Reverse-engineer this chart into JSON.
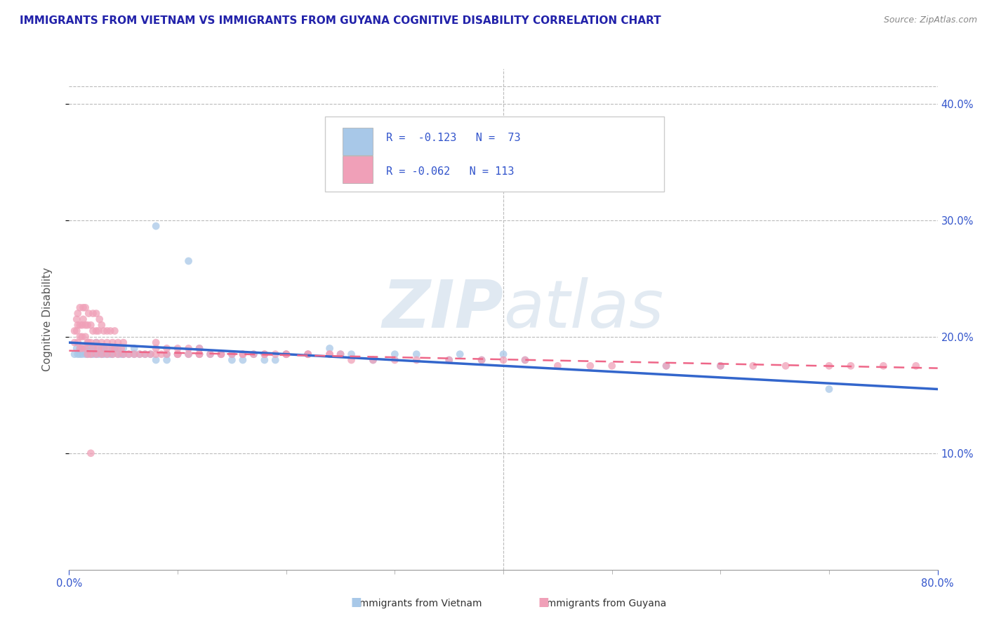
{
  "title": "IMMIGRANTS FROM VIETNAM VS IMMIGRANTS FROM GUYANA COGNITIVE DISABILITY CORRELATION CHART",
  "source": "Source: ZipAtlas.com",
  "ylabel": "Cognitive Disability",
  "color_vietnam": "#a8c8e8",
  "color_guyana": "#f0a0b8",
  "trendline_vietnam": "#3366cc",
  "trendline_guyana": "#ee6688",
  "watermark_zip": "ZIP",
  "watermark_atlas": "atlas",
  "title_color": "#2222aa",
  "source_color": "#888888",
  "xlim": [
    0.0,
    0.8
  ],
  "ylim": [
    0.0,
    0.43
  ],
  "viet_trend_x0": 0.0,
  "viet_trend_x1": 0.8,
  "viet_trend_y0": 0.195,
  "viet_trend_y1": 0.155,
  "guy_trend_x0": 0.0,
  "guy_trend_x1": 0.8,
  "guy_trend_y0": 0.188,
  "guy_trend_y1": 0.173,
  "vietnam_x": [
    0.005,
    0.007,
    0.008,
    0.01,
    0.01,
    0.012,
    0.012,
    0.015,
    0.015,
    0.017,
    0.017,
    0.02,
    0.02,
    0.022,
    0.022,
    0.025,
    0.025,
    0.025,
    0.027,
    0.03,
    0.03,
    0.032,
    0.032,
    0.035,
    0.035,
    0.038,
    0.04,
    0.04,
    0.042,
    0.045,
    0.045,
    0.048,
    0.05,
    0.05,
    0.055,
    0.06,
    0.06,
    0.065,
    0.07,
    0.075,
    0.08,
    0.08,
    0.09,
    0.09,
    0.1,
    0.11,
    0.11,
    0.12,
    0.12,
    0.13,
    0.14,
    0.15,
    0.15,
    0.16,
    0.17,
    0.18,
    0.19,
    0.2,
    0.22,
    0.24,
    0.25,
    0.26,
    0.28,
    0.3,
    0.32,
    0.35,
    0.36,
    0.38,
    0.4,
    0.42,
    0.55,
    0.6,
    0.7
  ],
  "vietnam_y": [
    0.185,
    0.19,
    0.185,
    0.19,
    0.185,
    0.19,
    0.185,
    0.185,
    0.19,
    0.185,
    0.19,
    0.185,
    0.19,
    0.19,
    0.185,
    0.19,
    0.185,
    0.195,
    0.185,
    0.185,
    0.19,
    0.185,
    0.19,
    0.185,
    0.19,
    0.185,
    0.185,
    0.19,
    0.19,
    0.185,
    0.19,
    0.185,
    0.185,
    0.19,
    0.185,
    0.185,
    0.19,
    0.185,
    0.185,
    0.185,
    0.18,
    0.295,
    0.185,
    0.18,
    0.185,
    0.265,
    0.185,
    0.185,
    0.19,
    0.185,
    0.185,
    0.18,
    0.185,
    0.18,
    0.185,
    0.18,
    0.18,
    0.185,
    0.185,
    0.19,
    0.185,
    0.185,
    0.18,
    0.185,
    0.185,
    0.18,
    0.185,
    0.18,
    0.185,
    0.18,
    0.175,
    0.175,
    0.155
  ],
  "guyana_x": [
    0.005,
    0.005,
    0.007,
    0.007,
    0.008,
    0.008,
    0.008,
    0.01,
    0.01,
    0.01,
    0.01,
    0.012,
    0.012,
    0.012,
    0.013,
    0.013,
    0.015,
    0.015,
    0.015,
    0.015,
    0.017,
    0.017,
    0.017,
    0.018,
    0.018,
    0.02,
    0.02,
    0.02,
    0.022,
    0.022,
    0.022,
    0.025,
    0.025,
    0.025,
    0.025,
    0.027,
    0.027,
    0.028,
    0.03,
    0.03,
    0.03,
    0.032,
    0.032,
    0.035,
    0.035,
    0.035,
    0.038,
    0.038,
    0.04,
    0.04,
    0.042,
    0.042,
    0.045,
    0.045,
    0.048,
    0.05,
    0.05,
    0.055,
    0.06,
    0.065,
    0.07,
    0.075,
    0.08,
    0.08,
    0.085,
    0.09,
    0.09,
    0.1,
    0.1,
    0.11,
    0.11,
    0.12,
    0.12,
    0.13,
    0.14,
    0.15,
    0.16,
    0.17,
    0.18,
    0.19,
    0.2,
    0.22,
    0.24,
    0.25,
    0.26,
    0.28,
    0.3,
    0.32,
    0.35,
    0.38,
    0.4,
    0.42,
    0.45,
    0.48,
    0.5,
    0.55,
    0.6,
    0.63,
    0.66,
    0.7,
    0.72,
    0.75,
    0.78,
    0.08,
    0.1,
    0.12,
    0.14,
    0.16,
    0.18,
    0.2,
    0.22,
    0.24,
    0.02
  ],
  "guyana_y": [
    0.195,
    0.205,
    0.205,
    0.215,
    0.21,
    0.22,
    0.195,
    0.19,
    0.2,
    0.21,
    0.225,
    0.19,
    0.2,
    0.21,
    0.215,
    0.225,
    0.19,
    0.2,
    0.21,
    0.225,
    0.185,
    0.195,
    0.21,
    0.22,
    0.195,
    0.185,
    0.195,
    0.21,
    0.19,
    0.205,
    0.22,
    0.185,
    0.195,
    0.205,
    0.22,
    0.19,
    0.205,
    0.215,
    0.185,
    0.195,
    0.21,
    0.19,
    0.205,
    0.185,
    0.195,
    0.205,
    0.19,
    0.205,
    0.185,
    0.195,
    0.19,
    0.205,
    0.185,
    0.195,
    0.19,
    0.185,
    0.195,
    0.185,
    0.185,
    0.185,
    0.185,
    0.185,
    0.185,
    0.195,
    0.185,
    0.185,
    0.19,
    0.185,
    0.19,
    0.185,
    0.19,
    0.185,
    0.19,
    0.185,
    0.185,
    0.185,
    0.185,
    0.185,
    0.185,
    0.185,
    0.185,
    0.185,
    0.185,
    0.185,
    0.18,
    0.18,
    0.18,
    0.18,
    0.18,
    0.18,
    0.18,
    0.18,
    0.175,
    0.175,
    0.175,
    0.175,
    0.175,
    0.175,
    0.175,
    0.175,
    0.175,
    0.175,
    0.175,
    0.19,
    0.185,
    0.185,
    0.185,
    0.185,
    0.185,
    0.185,
    0.185,
    0.185,
    0.1
  ]
}
